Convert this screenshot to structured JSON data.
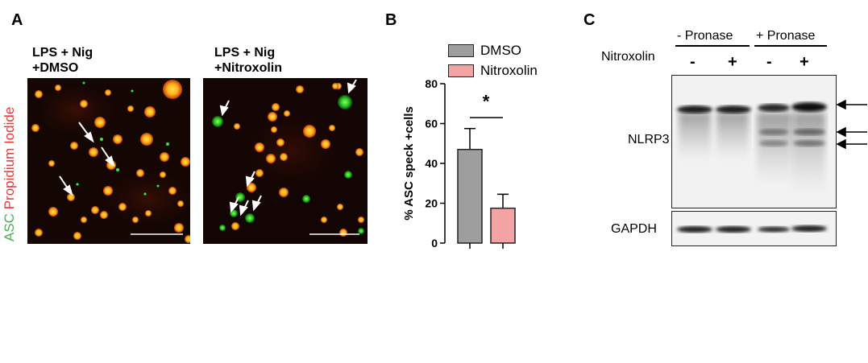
{
  "panel_a": {
    "letter": "A",
    "left_label": "LPS + Nig\n+DMSO",
    "left_label_line1": "LPS + Nig",
    "left_label_line2": "+DMSO",
    "right_label_line1": "LPS + Nig",
    "right_label_line2": "+Nitroxolin",
    "side_label_green": "ASC",
    "side_label_red": "Propidium Iodide"
  },
  "panel_b": {
    "letter": "B",
    "legend": [
      {
        "name": "DMSO",
        "color": "#9e9e9e"
      },
      {
        "name": "Nitroxolin",
        "color": "#f4a3a3"
      }
    ],
    "significance": "*",
    "chart_data": {
      "type": "bar",
      "categories": [
        "DMSO",
        "Nitroxolin"
      ],
      "values": [
        47,
        17.5
      ],
      "errors": [
        10.5,
        7
      ],
      "colors": [
        "#9e9e9e",
        "#f4a3a3"
      ],
      "ylabel": "% ASC speck +cells",
      "ylim": [
        0,
        80
      ],
      "yticks": [
        0,
        20,
        40,
        60,
        80
      ],
      "grid": false
    }
  },
  "panel_c": {
    "letter": "C",
    "group_minus": "- Pronase",
    "group_plus": "+ Pronase",
    "row_label": "Nitroxolin",
    "lane_signs": [
      "-",
      "+",
      "-",
      "+"
    ],
    "protein_1": "NLRP3",
    "protein_2": "GAPDH"
  }
}
